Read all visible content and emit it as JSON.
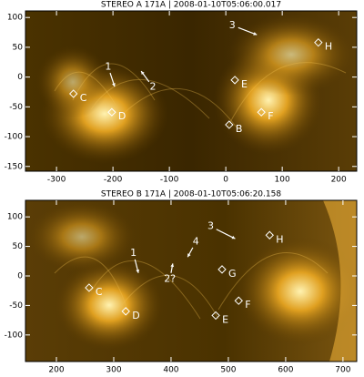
{
  "chart_data": [
    {
      "type": "image",
      "title": "STEREO A 171A | 2008-01-10T05:06:00.017",
      "xlim": [
        -355,
        232
      ],
      "ylim": [
        -158,
        111
      ],
      "xticks": [
        -300,
        -200,
        -100,
        0,
        100,
        200
      ],
      "yticks": [
        100,
        50,
        0,
        -50,
        -100,
        -150
      ],
      "markers": [
        {
          "label": "C",
          "x": -270,
          "y": -28
        },
        {
          "label": "D",
          "x": -202,
          "y": -59
        },
        {
          "label": "B",
          "x": 6,
          "y": -80
        },
        {
          "label": "F",
          "x": 63,
          "y": -59
        },
        {
          "label": "E",
          "x": 16,
          "y": -5
        },
        {
          "label": "H",
          "x": 164,
          "y": 58
        }
      ],
      "arrows": [
        {
          "label": "1",
          "from": [
            -205,
            7
          ],
          "to": [
            -197,
            -16
          ]
        },
        {
          "label": "2",
          "from": [
            -136,
            -8
          ],
          "to": [
            -150,
            10
          ]
        },
        {
          "label": "3",
          "from": [
            22,
            83
          ],
          "to": [
            55,
            71
          ]
        }
      ]
    },
    {
      "type": "image",
      "title": "STEREO B 171A | 2008-01-10T05:06:20.158",
      "xlim": [
        146,
        724
      ],
      "ylim": [
        -145,
        128
      ],
      "xticks": [
        200,
        300,
        400,
        500,
        600,
        700
      ],
      "yticks": [
        100,
        50,
        0,
        -50,
        -100
      ],
      "markers": [
        {
          "label": "C",
          "x": 257,
          "y": -20
        },
        {
          "label": "D",
          "x": 321,
          "y": -60
        },
        {
          "label": "E",
          "x": 478,
          "y": -67
        },
        {
          "label": "F",
          "x": 518,
          "y": -42
        },
        {
          "label": "G",
          "x": 489,
          "y": 11
        },
        {
          "label": "H",
          "x": 572,
          "y": 69
        }
      ],
      "arrows": [
        {
          "label": "1",
          "from": [
            337,
            28
          ],
          "to": [
            343,
            5
          ]
        },
        {
          "label": "4",
          "from": [
            438,
            48
          ],
          "to": [
            429,
            32
          ]
        },
        {
          "label": "2?",
          "from": [
            400,
            5
          ],
          "to": [
            403,
            21
          ]
        },
        {
          "label": "3",
          "from": [
            479,
            79
          ],
          "to": [
            512,
            63
          ]
        }
      ]
    }
  ]
}
